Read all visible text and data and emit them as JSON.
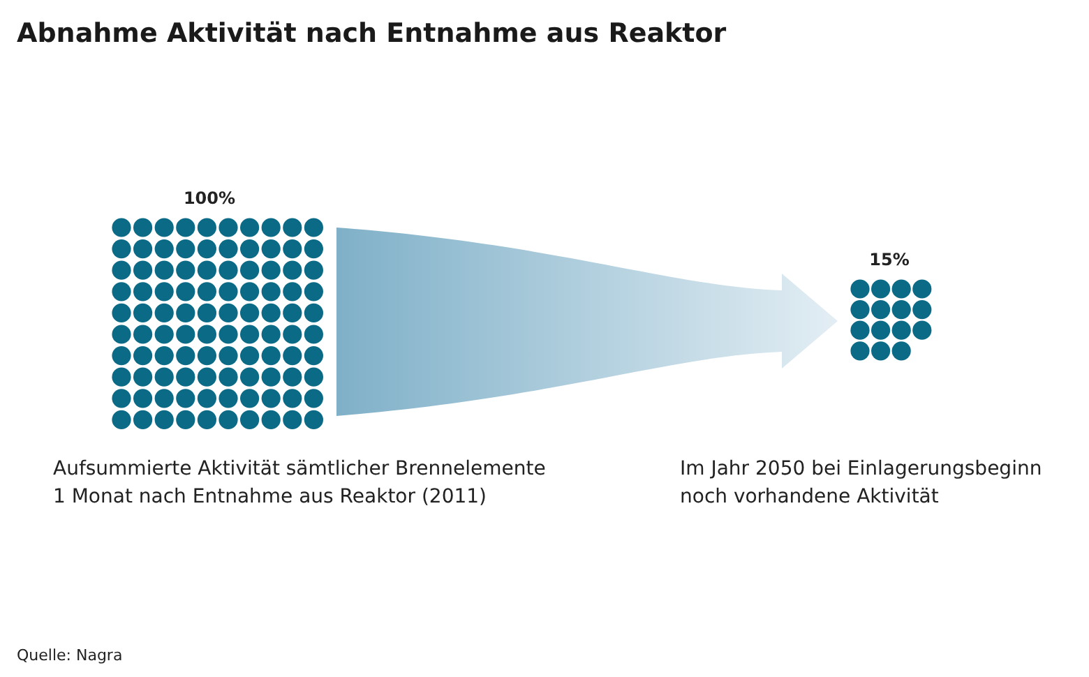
{
  "chart_data": {
    "type": "other",
    "title": "Abnahme Aktivität nach Entnahme aus Reaktor",
    "categories": [
      "Aufsummierte Aktivität sämtlicher Brennelemente\n1 Monat nach Entnahme aus Reaktor (2011)",
      "Im Jahr 2050 bei Einlagerungsbeginn\nnoch vorhandene Aktivität"
    ],
    "values": [
      100,
      15
    ],
    "value_labels": [
      "100%",
      "15%"
    ],
    "color": "#0b6a86",
    "annotations": [
      "Quelle: Nagra"
    ]
  }
}
